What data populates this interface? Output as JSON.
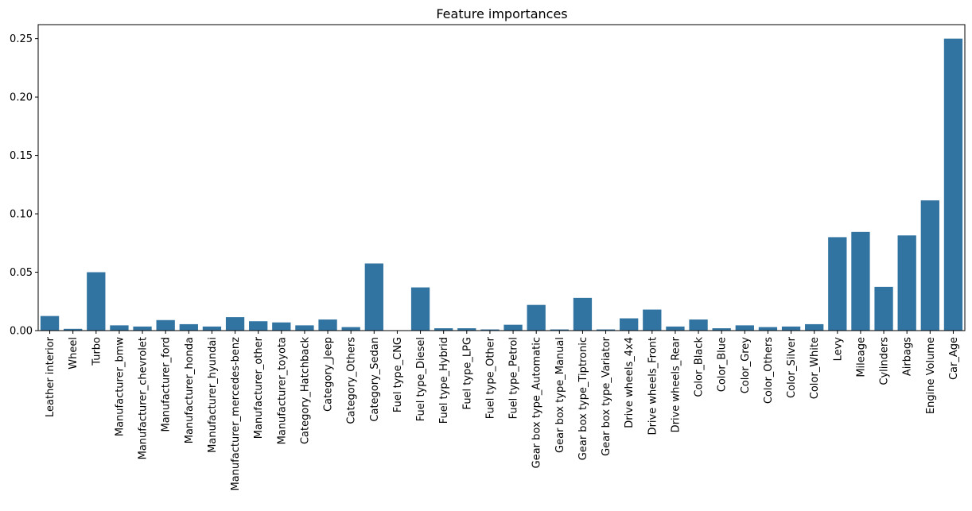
{
  "chart_data": {
    "type": "bar",
    "title": "Feature importances",
    "xlabel": "",
    "ylabel": "",
    "ylim": [
      0,
      0.262
    ],
    "yticks": [
      0.0,
      0.05,
      0.1,
      0.15,
      0.2,
      0.25
    ],
    "ytick_labels": [
      "0.00",
      "0.05",
      "0.10",
      "0.15",
      "0.20",
      "0.25"
    ],
    "grid": false,
    "bar_color": "#3274a1",
    "categories": [
      "Leather interior",
      "Wheel",
      "Turbo",
      "Manufacturer_bmw",
      "Manufacturer_chevrolet",
      "Manufacturer_ford",
      "Manufacturer_honda",
      "Manufacturer_hyundai",
      "Manufacturer_mercedes-benz",
      "Manufacturer_other",
      "Manufacturer_toyota",
      "Category_Hatchback",
      "Category_Jeep",
      "Category_Others",
      "Category_Sedan",
      "Fuel type_CNG",
      "Fuel type_Diesel",
      "Fuel type_Hybrid",
      "Fuel type_LPG",
      "Fuel type_Other",
      "Fuel type_Petrol",
      "Gear box type_Automatic",
      "Gear box type_Manual",
      "Gear box type_Tiptronic",
      "Gear box type_Variator",
      "Drive wheels_4x4",
      "Drive wheels_Front",
      "Drive wheels_Rear",
      "Color_Black",
      "Color_Blue",
      "Color_Grey",
      "Color_Others",
      "Color_Silver",
      "Color_White",
      "Levy",
      "Mileage",
      "Cylinders",
      "Airbags",
      "Engine Volume",
      "Car_Age"
    ],
    "values": [
      0.0125,
      0.0015,
      0.05,
      0.0045,
      0.0035,
      0.009,
      0.0055,
      0.0035,
      0.0115,
      0.008,
      0.007,
      0.0045,
      0.0095,
      0.003,
      0.0575,
      0.0,
      0.037,
      0.002,
      0.002,
      0.001,
      0.005,
      0.022,
      0.001,
      0.028,
      0.001,
      0.0105,
      0.018,
      0.0035,
      0.0095,
      0.002,
      0.0045,
      0.003,
      0.0035,
      0.0055,
      0.08,
      0.0845,
      0.0375,
      0.0815,
      0.1115,
      0.25
    ]
  }
}
